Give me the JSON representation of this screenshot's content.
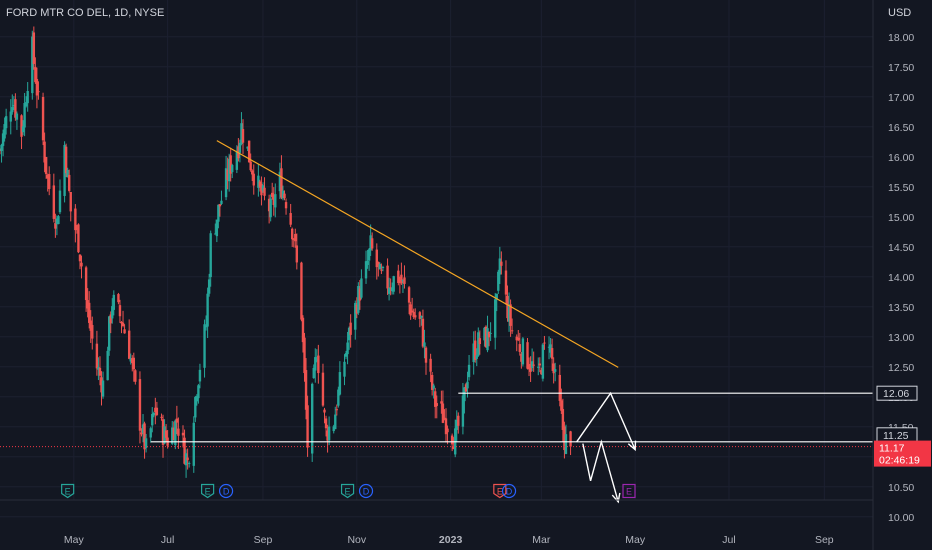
{
  "header": {
    "title": "FORD MTR CO DEL, 1D, NYSE"
  },
  "currency": "USD",
  "colors": {
    "background": "#131722",
    "up": "#26a69a",
    "down": "#ef5350",
    "trendline": "#f5a623",
    "drawing": "#ffffff",
    "current_price": "#f23645",
    "earnings_up": "#26a69a",
    "earnings_down": "#ef5350",
    "dividend": "#2962ff",
    "earnings_future": "#9c27b0"
  },
  "chart_data": {
    "type": "candlestick",
    "title": "FORD MTR CO DEL, 1D, NYSE",
    "ylabel": "USD",
    "ylim": [
      9.83,
      18.48
    ],
    "y_ticks": [
      "18.00",
      "17.50",
      "17.00",
      "16.50",
      "16.00",
      "15.50",
      "15.00",
      "14.50",
      "14.00",
      "13.50",
      "13.00",
      "12.50",
      "12.00",
      "11.50",
      "11.00",
      "10.50",
      "10.00"
    ],
    "x_ticks": [
      "May",
      "Jul",
      "Sep",
      "Nov",
      "2023",
      "Mar",
      "May",
      "Jul",
      "Sep"
    ],
    "x_tick_dates": [
      "2022-05-01",
      "2022-07-01",
      "2022-09-01",
      "2022-11-01",
      "2023-01-01",
      "2023-03-01",
      "2023-05-01",
      "2023-07-01",
      "2023-09-01"
    ],
    "x_range": [
      "2022-03-14",
      "2023-10-02"
    ],
    "closes": [
      {
        "date": "2022-03-14",
        "close": 16.1
      },
      {
        "date": "2022-03-18",
        "close": 16.6
      },
      {
        "date": "2022-03-22",
        "close": 17.0
      },
      {
        "date": "2022-03-28",
        "close": 16.4
      },
      {
        "date": "2022-04-01",
        "close": 17.3
      },
      {
        "date": "2022-04-04",
        "close": 17.8
      },
      {
        "date": "2022-04-08",
        "close": 16.9
      },
      {
        "date": "2022-04-14",
        "close": 15.6
      },
      {
        "date": "2022-04-20",
        "close": 14.9
      },
      {
        "date": "2022-04-25",
        "close": 16.2
      },
      {
        "date": "2022-04-29",
        "close": 15.1
      },
      {
        "date": "2022-05-04",
        "close": 14.6
      },
      {
        "date": "2022-05-10",
        "close": 13.4
      },
      {
        "date": "2022-05-16",
        "close": 12.5
      },
      {
        "date": "2022-05-20",
        "close": 12.2
      },
      {
        "date": "2022-05-26",
        "close": 13.6
      },
      {
        "date": "2022-06-01",
        "close": 13.3
      },
      {
        "date": "2022-06-06",
        "close": 12.8
      },
      {
        "date": "2022-06-13",
        "close": 11.6
      },
      {
        "date": "2022-06-17",
        "close": 11.1
      },
      {
        "date": "2022-06-23",
        "close": 11.8
      },
      {
        "date": "2022-06-28",
        "close": 11.4
      },
      {
        "date": "2022-07-01",
        "close": 11.3
      },
      {
        "date": "2022-07-07",
        "close": 11.6
      },
      {
        "date": "2022-07-14",
        "close": 10.9
      },
      {
        "date": "2022-07-20",
        "close": 12.2
      },
      {
        "date": "2022-07-26",
        "close": 13.2
      },
      {
        "date": "2022-07-29",
        "close": 14.6
      },
      {
        "date": "2022-08-04",
        "close": 15.2
      },
      {
        "date": "2022-08-10",
        "close": 15.8
      },
      {
        "date": "2022-08-16",
        "close": 16.2
      },
      {
        "date": "2022-08-18",
        "close": 16.5
      },
      {
        "date": "2022-08-24",
        "close": 15.9
      },
      {
        "date": "2022-08-30",
        "close": 15.4
      },
      {
        "date": "2022-09-06",
        "close": 15.1
      },
      {
        "date": "2022-09-12",
        "close": 15.6
      },
      {
        "date": "2022-09-16",
        "close": 15.3
      },
      {
        "date": "2022-09-21",
        "close": 14.7
      },
      {
        "date": "2022-09-26",
        "close": 13.4
      },
      {
        "date": "2022-09-30",
        "close": 11.2
      },
      {
        "date": "2022-10-06",
        "close": 12.8
      },
      {
        "date": "2022-10-12",
        "close": 11.4
      },
      {
        "date": "2022-10-17",
        "close": 11.6
      },
      {
        "date": "2022-10-21",
        "close": 12.2
      },
      {
        "date": "2022-10-26",
        "close": 12.9
      },
      {
        "date": "2022-11-01",
        "close": 13.6
      },
      {
        "date": "2022-11-07",
        "close": 14.1
      },
      {
        "date": "2022-11-10",
        "close": 14.5
      },
      {
        "date": "2022-11-16",
        "close": 14.0
      },
      {
        "date": "2022-11-21",
        "close": 13.9
      },
      {
        "date": "2022-11-28",
        "close": 14.0
      },
      {
        "date": "2022-12-02",
        "close": 13.8
      },
      {
        "date": "2022-12-07",
        "close": 13.4
      },
      {
        "date": "2022-12-13",
        "close": 13.2
      },
      {
        "date": "2022-12-16",
        "close": 12.6
      },
      {
        "date": "2022-12-22",
        "close": 11.9
      },
      {
        "date": "2022-12-29",
        "close": 11.6
      },
      {
        "date": "2023-01-04",
        "close": 11.3
      },
      {
        "date": "2023-01-09",
        "close": 11.8
      },
      {
        "date": "2023-01-13",
        "close": 12.6
      },
      {
        "date": "2023-01-19",
        "close": 12.9
      },
      {
        "date": "2023-01-25",
        "close": 13.0
      },
      {
        "date": "2023-01-31",
        "close": 13.5
      },
      {
        "date": "2023-02-02",
        "close": 14.3
      },
      {
        "date": "2023-02-06",
        "close": 13.6
      },
      {
        "date": "2023-02-10",
        "close": 13.1
      },
      {
        "date": "2023-02-16",
        "close": 12.8
      },
      {
        "date": "2023-02-21",
        "close": 12.6
      },
      {
        "date": "2023-02-27",
        "close": 12.3
      },
      {
        "date": "2023-03-02",
        "close": 12.7
      },
      {
        "date": "2023-03-06",
        "close": 13.0
      },
      {
        "date": "2023-03-09",
        "close": 12.4
      },
      {
        "date": "2023-03-13",
        "close": 11.8
      },
      {
        "date": "2023-03-16",
        "close": 11.3
      },
      {
        "date": "2023-03-20",
        "close": 11.17
      }
    ],
    "trendline": {
      "from": {
        "date": "2022-08-02",
        "price": 16.27
      },
      "to": {
        "date": "2023-04-20",
        "price": 12.49
      }
    },
    "horizontal_lines": [
      {
        "name": "resistance",
        "price": 12.06,
        "from": "2023-01-06"
      },
      {
        "name": "support",
        "price": 11.25,
        "from": "2022-06-20"
      }
    ],
    "projections": [
      {
        "name": "bounce-path",
        "points": [
          [
            "2023-03-24",
            11.25
          ],
          [
            "2023-04-15",
            12.06
          ],
          [
            "2023-05-01",
            11.12
          ]
        ]
      },
      {
        "name": "breakdown-path",
        "points": [
          [
            "2023-03-28",
            11.22
          ],
          [
            "2023-04-02",
            10.6
          ],
          [
            "2023-04-09",
            11.25
          ],
          [
            "2023-04-20",
            10.25
          ]
        ]
      }
    ],
    "price_labels": [
      {
        "name": "resistance-price-label",
        "text": "12.06",
        "price": 12.06,
        "style": "outline"
      },
      {
        "name": "support-price-label",
        "text": "11.25",
        "price": 11.25,
        "style": "outline"
      },
      {
        "name": "last-price-label",
        "text": "11.17",
        "price": 11.17,
        "style": "current"
      }
    ],
    "countdown": "02:46:19",
    "events": [
      {
        "type": "E",
        "date": "2022-04-27",
        "kind": "earnings-up"
      },
      {
        "type": "E",
        "date": "2022-07-27",
        "kind": "earnings-up"
      },
      {
        "type": "D",
        "date": "2022-08-08",
        "kind": "dividend"
      },
      {
        "type": "E",
        "date": "2022-10-26",
        "kind": "earnings-up"
      },
      {
        "type": "D",
        "date": "2022-11-07",
        "kind": "dividend"
      },
      {
        "type": "E",
        "date": "2023-02-02",
        "kind": "earnings-down"
      },
      {
        "type": "D",
        "date": "2023-02-08",
        "kind": "dividend"
      },
      {
        "type": "E",
        "date": "2023-04-27",
        "kind": "earnings-future"
      }
    ]
  }
}
